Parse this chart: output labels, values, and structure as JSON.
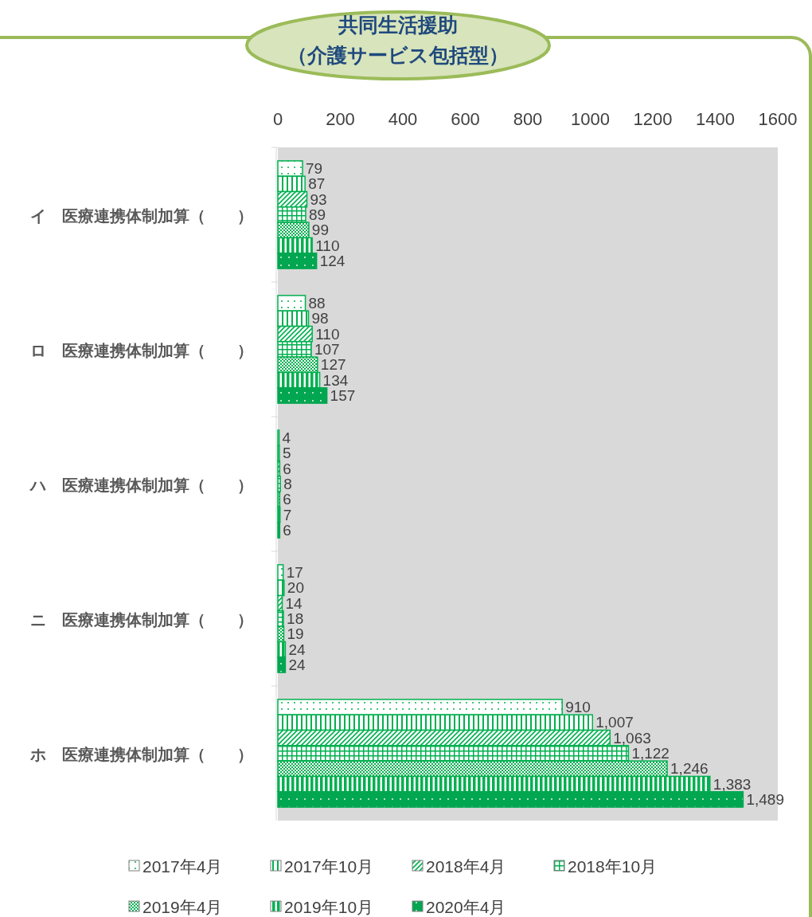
{
  "chart_data": {
    "type": "bar",
    "orientation": "horizontal",
    "title": "共同生活援助",
    "subtitle": "（介護サービス包括型）",
    "categories": [
      "イ　医療連携体制加算（　　）",
      "ロ　医療連携体制加算（　　）",
      "ハ　医療連携体制加算（　　）",
      "ニ　医療連携体制加算（　　）",
      "ホ　医療連携体制加算（　　）"
    ],
    "series": [
      {
        "name": "2017年4月",
        "color": "#00b050",
        "values": [
          79,
          88,
          4,
          17,
          910
        ],
        "value_labels": [
          "79",
          "88",
          "4",
          "17",
          "910"
        ]
      },
      {
        "name": "2017年10月",
        "color": "#00b050",
        "values": [
          87,
          98,
          5,
          20,
          1007
        ],
        "value_labels": [
          "87",
          "98",
          "5",
          "20",
          "1,007"
        ]
      },
      {
        "name": "2018年4月",
        "color": "#00b050",
        "values": [
          93,
          110,
          6,
          14,
          1063
        ],
        "value_labels": [
          "93",
          "110",
          "6",
          "14",
          "1,063"
        ]
      },
      {
        "name": "2018年10月",
        "color": "#00b050",
        "values": [
          89,
          107,
          8,
          18,
          1122
        ],
        "value_labels": [
          "89",
          "107",
          "8",
          "18",
          "1,122"
        ]
      },
      {
        "name": "2019年4月",
        "color": "#00b050",
        "values": [
          99,
          127,
          6,
          19,
          1246
        ],
        "value_labels": [
          "99",
          "127",
          "6",
          "19",
          "1,246"
        ]
      },
      {
        "name": "2019年10月",
        "color": "#00b050",
        "values": [
          110,
          134,
          7,
          24,
          1383
        ],
        "value_labels": [
          "110",
          "134",
          "7",
          "24",
          "1,383"
        ]
      },
      {
        "name": "2020年4月",
        "color": "#00a650",
        "values": [
          124,
          157,
          6,
          24,
          1489
        ],
        "value_labels": [
          "124",
          "157",
          "6",
          "24",
          "1,489"
        ]
      }
    ],
    "xlim": [
      0,
      1600
    ],
    "xticks": [
      0,
      200,
      400,
      600,
      800,
      1000,
      1200,
      1400,
      1600
    ],
    "grid": false,
    "legend": "bottom"
  }
}
